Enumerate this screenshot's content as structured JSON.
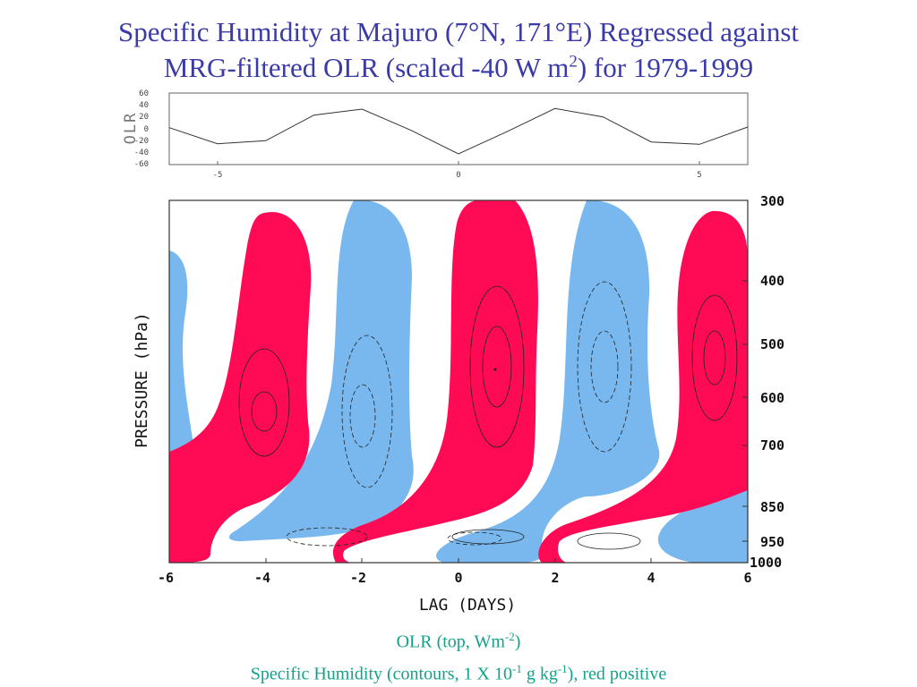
{
  "title": {
    "line1": "Specific Humidity at Majuro (7°N, 171°E) Regressed against",
    "line2_pre": "MRG-filtered OLR (scaled -40 W m",
    "line2_sup": "2",
    "line2_post": ") for 1979-1999"
  },
  "caption": {
    "line1_pre": "OLR (top, Wm",
    "line1_sup": "-2",
    "line1_post": ")",
    "line2_pre": "Specific Humidity (contours, 1 X 10",
    "line2_sup1": "-1",
    "line2_mid": " g kg",
    "line2_sup2": "-1",
    "line2_post": "), red positive"
  },
  "colors": {
    "title": "#3a3aa8",
    "caption": "#13a28a",
    "positive": "#ff0a55",
    "negative": "#79b8ee"
  },
  "chart_data": [
    {
      "type": "line",
      "ylabel": "OLR",
      "x": [
        -6,
        -5,
        -4,
        -3,
        -2,
        -1,
        0,
        1,
        2,
        3,
        4,
        5,
        6
      ],
      "values": [
        2,
        -25,
        -20,
        23,
        33,
        -2,
        -42,
        -5,
        34,
        20,
        -22,
        -26,
        3
      ],
      "xlim": [
        -6,
        6
      ],
      "ylim": [
        -60,
        60
      ],
      "yticks": [
        "60",
        "40",
        "20",
        "0",
        "-20",
        "-40",
        "-60"
      ],
      "xticks": [
        "-5",
        "0",
        "5"
      ]
    },
    {
      "type": "heatmap",
      "xlabel": "LAG (DAYS)",
      "ylabel": "PRESSURE (hPa)",
      "xticks": [
        "-6",
        "-4",
        "-2",
        "0",
        "2",
        "4",
        "6"
      ],
      "yticks": [
        "300",
        "400",
        "500",
        "600",
        "700",
        "850",
        "950",
        "1000"
      ],
      "xlim": [
        -6,
        6
      ],
      "ylim": [
        1000,
        300
      ],
      "positive_maxima": [
        {
          "lag": -4,
          "pressure": 620
        },
        {
          "lag": 0.7,
          "pressure": 545
        },
        {
          "lag": 5.2,
          "pressure": 545
        }
      ],
      "negative_minima": [
        {
          "lag": -1.7,
          "pressure": 620
        },
        {
          "lag": 3,
          "pressure": 545
        }
      ]
    }
  ]
}
